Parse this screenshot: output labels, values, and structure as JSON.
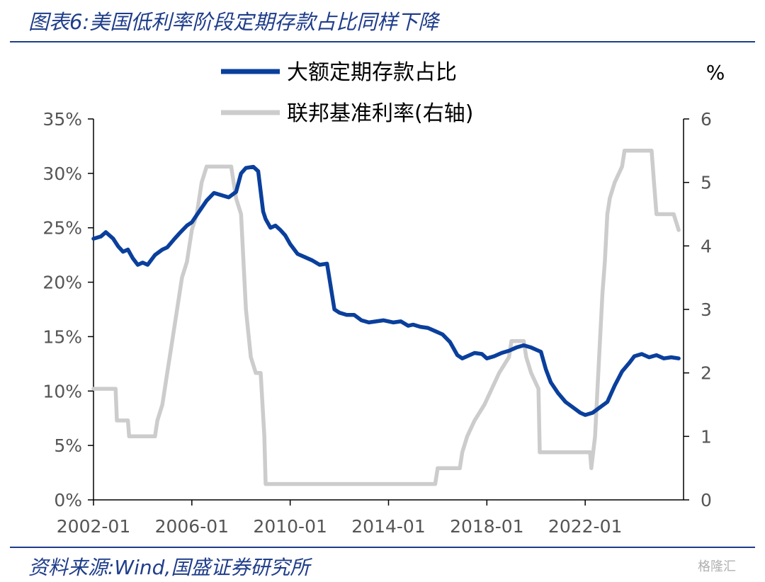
{
  "header": {
    "title": "图表6:美国低利率阶段定期存款占比同样下降"
  },
  "footer": {
    "source": "资料来源:Wind,国盛证券研究所",
    "watermark": "格隆汇"
  },
  "chart_data": {
    "type": "line",
    "colors": {
      "deposit": "#0a3f9c",
      "rate": "#cccccc",
      "axis": "#000000",
      "tick_text": "#555555",
      "rule": "#1f3d8a"
    },
    "legend": {
      "placement": "top-center",
      "entries": [
        {
          "name": "大额定期存款占比",
          "color": "#0a3f9c"
        },
        {
          "name": "联邦基准利率(右轴)",
          "color": "#cccccc"
        }
      ]
    },
    "y_right_unit": "%",
    "xlim": [
      2002.0,
      2026.0
    ],
    "x_ticks": [
      "2002-01",
      "2006-01",
      "2010-01",
      "2014-01",
      "2018-01",
      "2022-01"
    ],
    "x_tick_values": [
      2002,
      2006,
      2010,
      2014,
      2018,
      2022
    ],
    "y_left": {
      "ylim": [
        0,
        35
      ],
      "ticks": [
        "0%",
        "5%",
        "10%",
        "15%",
        "20%",
        "25%",
        "30%",
        "35%"
      ],
      "tick_values": [
        0,
        5,
        10,
        15,
        20,
        25,
        30,
        35
      ]
    },
    "y_right": {
      "ylim": [
        0,
        6
      ],
      "ticks": [
        "0",
        "1",
        "2",
        "3",
        "4",
        "5",
        "6"
      ],
      "tick_values": [
        0,
        1,
        2,
        3,
        4,
        5,
        6
      ]
    },
    "series": [
      {
        "name": "大额定期存款占比",
        "axis": "left",
        "x": [
          2002.0,
          2002.3,
          2002.5,
          2002.8,
          2003.0,
          2003.2,
          2003.4,
          2003.6,
          2003.8,
          2004.0,
          2004.2,
          2004.5,
          2004.8,
          2005.0,
          2005.3,
          2005.5,
          2005.8,
          2006.0,
          2006.3,
          2006.6,
          2006.9,
          2007.2,
          2007.5,
          2007.8,
          2008.0,
          2008.2,
          2008.5,
          2008.7,
          2008.9,
          2009.0,
          2009.2,
          2009.4,
          2009.6,
          2009.8,
          2010.0,
          2010.3,
          2010.6,
          2010.9,
          2011.2,
          2011.5,
          2011.8,
          2012.0,
          2012.3,
          2012.6,
          2012.9,
          2013.2,
          2013.5,
          2013.8,
          2014.0,
          2014.2,
          2014.5,
          2014.8,
          2015.0,
          2015.3,
          2015.6,
          2015.9,
          2016.2,
          2016.5,
          2016.8,
          2017.0,
          2017.2,
          2017.5,
          2017.8,
          2018.0,
          2018.3,
          2018.6,
          2018.9,
          2019.2,
          2019.5,
          2019.8,
          2020.0,
          2020.2,
          2020.4,
          2020.6,
          2020.9,
          2021.2,
          2021.5,
          2021.8,
          2022.0,
          2022.3,
          2022.6,
          2022.9,
          2023.2,
          2023.5,
          2023.8,
          2024.0,
          2024.3,
          2024.6,
          2024.9,
          2025.2,
          2025.5,
          2025.8
        ],
        "values": [
          24.0,
          24.2,
          24.6,
          24.0,
          23.3,
          22.8,
          23.0,
          22.2,
          21.6,
          21.8,
          21.6,
          22.5,
          23.0,
          23.2,
          24.0,
          24.5,
          25.2,
          25.5,
          26.5,
          27.5,
          28.2,
          28.0,
          27.8,
          28.3,
          30.0,
          30.5,
          30.6,
          30.2,
          26.5,
          25.8,
          25.0,
          25.2,
          24.8,
          24.3,
          23.5,
          22.6,
          22.3,
          22.0,
          21.6,
          21.7,
          17.5,
          17.2,
          17.0,
          17.0,
          16.5,
          16.3,
          16.4,
          16.5,
          16.4,
          16.3,
          16.4,
          16.0,
          16.1,
          15.9,
          15.8,
          15.5,
          15.2,
          14.5,
          13.3,
          13.0,
          13.2,
          13.5,
          13.4,
          13.0,
          13.2,
          13.5,
          13.7,
          14.0,
          14.2,
          14.0,
          13.8,
          13.6,
          12.0,
          10.8,
          9.8,
          9.0,
          8.5,
          8.0,
          7.8,
          8.0,
          8.5,
          9.0,
          10.5,
          11.8,
          12.6,
          13.2,
          13.4,
          13.1,
          13.3,
          13.0,
          13.1,
          13.0
        ]
      },
      {
        "name": "联邦基准利率(右轴)",
        "axis": "right",
        "x": [
          2002.0,
          2002.9,
          2002.95,
          2003.4,
          2003.45,
          2004.5,
          2004.6,
          2004.8,
          2005.0,
          2005.2,
          2005.4,
          2005.6,
          2005.8,
          2006.0,
          2006.2,
          2006.4,
          2006.6,
          2007.6,
          2007.8,
          2008.0,
          2008.2,
          2008.4,
          2008.6,
          2008.8,
          2008.95,
          2009.0,
          2015.9,
          2016.0,
          2016.9,
          2017.0,
          2017.2,
          2017.5,
          2017.9,
          2018.2,
          2018.5,
          2018.9,
          2019.0,
          2019.5,
          2019.6,
          2019.8,
          2020.1,
          2020.15,
          2022.2,
          2022.25,
          2022.4,
          2022.5,
          2022.6,
          2022.7,
          2022.8,
          2022.9,
          2023.0,
          2023.2,
          2023.5,
          2023.6,
          2024.7,
          2024.8,
          2024.9,
          2025.6,
          2025.8
        ],
        "values": [
          1.75,
          1.75,
          1.25,
          1.25,
          1.0,
          1.0,
          1.25,
          1.5,
          2.0,
          2.5,
          3.0,
          3.5,
          3.75,
          4.25,
          4.5,
          5.0,
          5.25,
          5.25,
          4.75,
          4.5,
          3.0,
          2.25,
          2.0,
          2.0,
          1.0,
          0.25,
          0.25,
          0.5,
          0.5,
          0.75,
          1.0,
          1.25,
          1.5,
          1.75,
          2.0,
          2.25,
          2.5,
          2.5,
          2.25,
          2.0,
          1.75,
          0.75,
          0.75,
          0.5,
          1.0,
          1.75,
          2.5,
          3.25,
          3.75,
          4.5,
          4.75,
          5.0,
          5.25,
          5.5,
          5.5,
          5.0,
          4.5,
          4.5,
          4.25
        ]
      }
    ]
  }
}
